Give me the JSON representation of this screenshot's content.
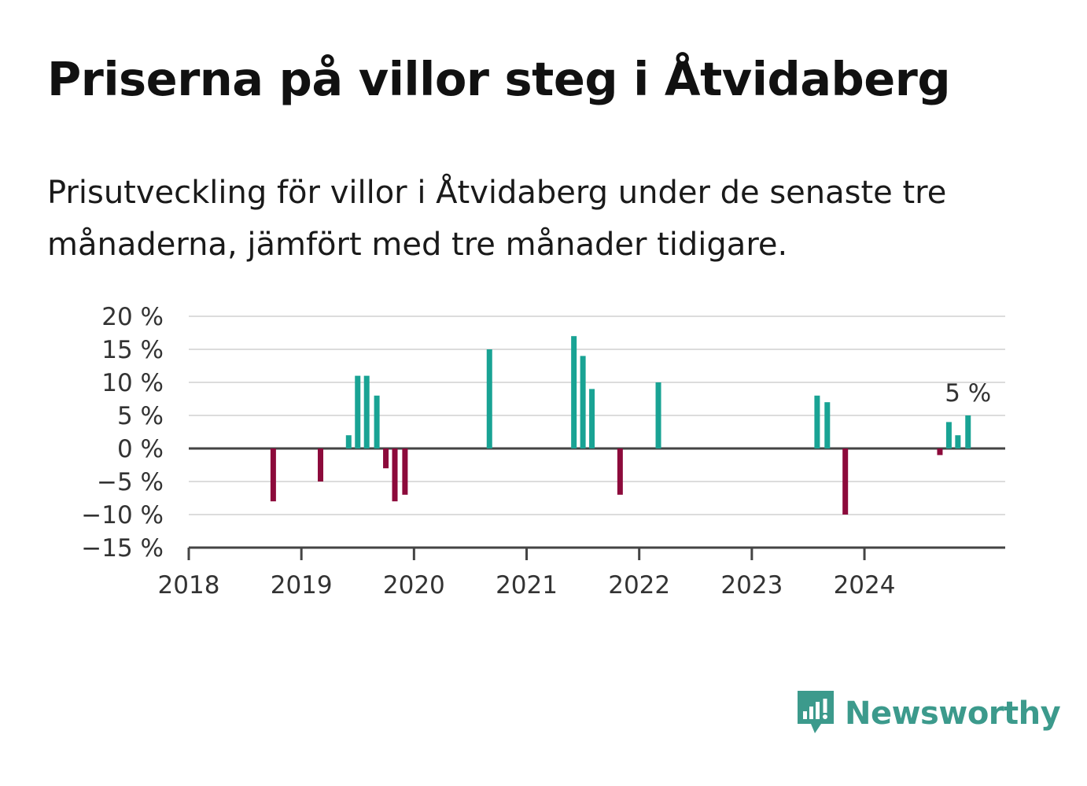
{
  "title": "Priserna på villor steg i Åtvidaberg",
  "subtitle": "Prisutveckling för villor i Åtvidaberg under de senaste tre månaderna, jämfört med tre månader tidigare.",
  "brand": {
    "name": "Newsworthy",
    "icon": "newsworthy-logo-icon"
  },
  "colors": {
    "positive": "#19a394",
    "negative": "#8c0a3b",
    "grid": "#dcdcdc",
    "axis": "#444444"
  },
  "chart_data": {
    "type": "bar",
    "y_ticks": [
      "20 %",
      "15 %",
      "10 %",
      "5 %",
      "0 %",
      "−5 %",
      "−10 %",
      "−15 %"
    ],
    "y_tick_values": [
      20,
      15,
      10,
      5,
      0,
      -5,
      -10,
      -15
    ],
    "ylim": [
      -15,
      20
    ],
    "x_ticks": [
      "2018",
      "2019",
      "2020",
      "2021",
      "2022",
      "2023",
      "2024"
    ],
    "x_tick_values": [
      2018,
      2019,
      2020,
      2021,
      2022,
      2023,
      2024
    ],
    "xlim": [
      2018,
      2025.25
    ],
    "annotation": {
      "text": "5 %",
      "x": 2024.92,
      "y": 5
    },
    "bars": [
      {
        "x": 2018.75,
        "y": -8
      },
      {
        "x": 2019.17,
        "y": -5
      },
      {
        "x": 2019.42,
        "y": 2
      },
      {
        "x": 2019.5,
        "y": 11
      },
      {
        "x": 2019.58,
        "y": 11
      },
      {
        "x": 2019.67,
        "y": 8
      },
      {
        "x": 2019.75,
        "y": -3
      },
      {
        "x": 2019.83,
        "y": -8
      },
      {
        "x": 2019.92,
        "y": -7
      },
      {
        "x": 2020.67,
        "y": 15
      },
      {
        "x": 2021.42,
        "y": 17
      },
      {
        "x": 2021.5,
        "y": 14
      },
      {
        "x": 2021.58,
        "y": 9
      },
      {
        "x": 2021.83,
        "y": -7
      },
      {
        "x": 2022.17,
        "y": 10
      },
      {
        "x": 2023.58,
        "y": 8
      },
      {
        "x": 2023.67,
        "y": 7
      },
      {
        "x": 2023.83,
        "y": -10
      },
      {
        "x": 2024.67,
        "y": -1
      },
      {
        "x": 2024.75,
        "y": 4
      },
      {
        "x": 2024.83,
        "y": 2
      },
      {
        "x": 2024.92,
        "y": 5
      }
    ]
  }
}
